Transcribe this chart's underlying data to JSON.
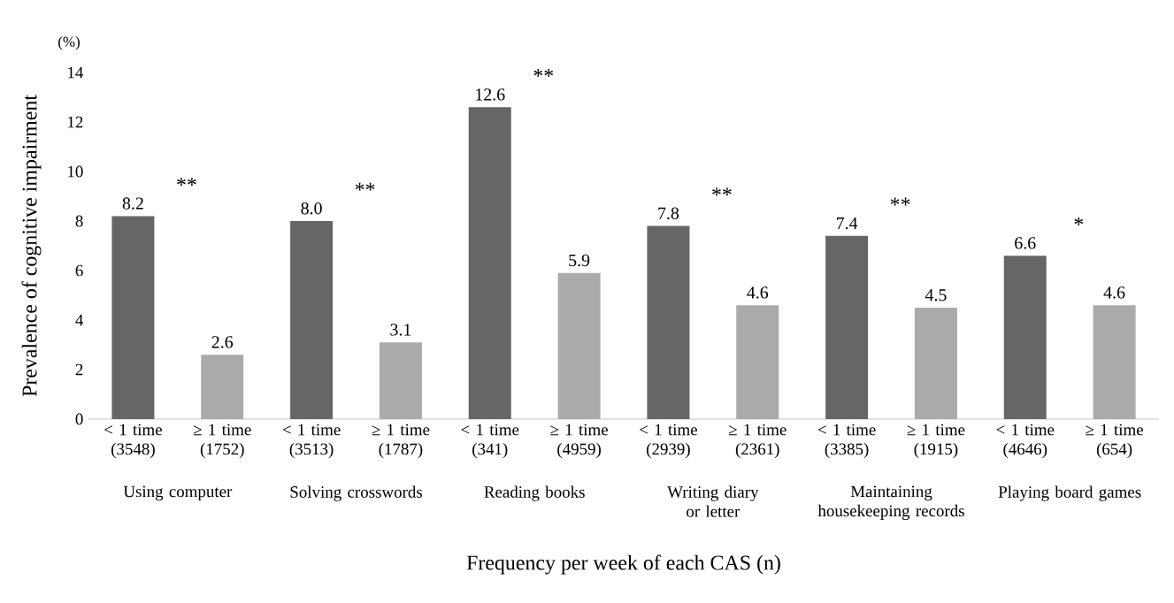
{
  "chart_data": {
    "type": "bar",
    "categories": [
      "< 1 time (3548)",
      "≥ 1 time (1752)",
      "< 1 time (3513)",
      "≥ 1 time (1787)",
      "< 1 time (341)",
      "≥ 1 time (4959)",
      "< 1 time (2939)",
      "≥ 1 time (2361)",
      "< 1 time (3385)",
      "≥ 1 time (1915)",
      "< 1 time (4646)",
      "≥ 1 time (654)"
    ],
    "values": [
      8.2,
      2.6,
      8.0,
      3.1,
      12.6,
      5.9,
      7.8,
      4.6,
      7.4,
      4.5,
      6.6,
      4.6
    ],
    "colors": [
      "#666666",
      "#aaaaaa",
      "#666666",
      "#aaaaaa",
      "#666666",
      "#aaaaaa",
      "#666666",
      "#aaaaaa",
      "#666666",
      "#aaaaaa",
      "#666666",
      "#aaaaaa"
    ],
    "value_labels": [
      "8.2",
      "2.6",
      "8.0",
      "3.1",
      "12.6",
      "5.9",
      "7.8",
      "4.6",
      "7.4",
      "4.5",
      "6.6",
      "4.6"
    ],
    "ylim": [
      0,
      14
    ],
    "yticks": [
      0,
      2,
      4,
      6,
      8,
      10,
      12,
      14
    ],
    "ylabel": "Prevalence of cognitive impairment",
    "xlabel": "Frequency per week of each CAS (n)",
    "annotations": [
      "(%)",
      "Using computer",
      "Solving crosswords",
      "Reading books",
      "Writing diary or letter",
      "Maintaining housekeeping records",
      "Playing board games",
      "**",
      "**",
      "**",
      "**",
      "**",
      "*"
    ]
  }
}
